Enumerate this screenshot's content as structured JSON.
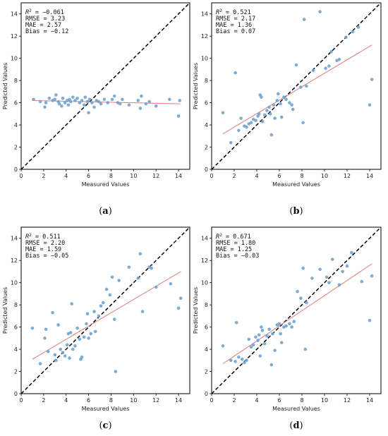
{
  "chart_data": [
    {
      "type": "scatter",
      "panel": "a",
      "caption_open": "(",
      "caption_letter": "a",
      "caption_close": ")",
      "xlabel": "Measured Values",
      "ylabel": "Predicted Values",
      "xlim": [
        0,
        15
      ],
      "ylim": [
        0,
        15
      ],
      "xticks": [
        0,
        2,
        4,
        6,
        8,
        10,
        12,
        14
      ],
      "yticks": [
        0,
        2,
        4,
        6,
        8,
        10,
        12,
        14
      ],
      "grid": false,
      "stats": {
        "r2_label": "R",
        "r2_sup": "2",
        "r2_value": " = −0.061",
        "rmse": "RMSE = 3.23",
        "mae": "MAE = 2.57",
        "bias": "Bias = −0.12"
      },
      "point_color": "#6fa3cf",
      "fit_color": "#e07b7b",
      "fit_line": [
        [
          1,
          6.2
        ],
        [
          14.2,
          5.9
        ]
      ],
      "identity_line": [
        [
          0,
          0
        ],
        [
          15,
          15
        ]
      ],
      "points": [
        [
          1.1,
          6.3
        ],
        [
          1.7,
          6.1
        ],
        [
          2.1,
          5.6
        ],
        [
          2.2,
          6.0
        ],
        [
          2.5,
          6.4
        ],
        [
          2.8,
          6.2
        ],
        [
          3.0,
          6.3
        ],
        [
          3.1,
          6.7
        ],
        [
          3.3,
          6.1
        ],
        [
          3.4,
          5.9
        ],
        [
          3.6,
          5.7
        ],
        [
          3.7,
          6.4
        ],
        [
          3.9,
          6.0
        ],
        [
          4.1,
          6.2
        ],
        [
          4.2,
          5.8
        ],
        [
          4.3,
          6.3
        ],
        [
          4.4,
          6.1
        ],
        [
          4.6,
          6.5
        ],
        [
          4.8,
          6.2
        ],
        [
          5.0,
          6.4
        ],
        [
          5.2,
          6.0
        ],
        [
          5.4,
          6.2
        ],
        [
          5.6,
          5.8
        ],
        [
          5.7,
          6.5
        ],
        [
          5.9,
          6.1
        ],
        [
          6.0,
          5.1
        ],
        [
          6.1,
          6.3
        ],
        [
          6.3,
          6.0
        ],
        [
          6.5,
          5.6
        ],
        [
          6.7,
          6.2
        ],
        [
          6.9,
          6.1
        ],
        [
          7.1,
          5.9
        ],
        [
          7.4,
          6.3
        ],
        [
          7.7,
          6.0
        ],
        [
          8.1,
          6.3
        ],
        [
          8.3,
          6.6
        ],
        [
          8.6,
          6.0
        ],
        [
          8.8,
          5.9
        ],
        [
          9.0,
          6.3
        ],
        [
          9.6,
          5.8
        ],
        [
          10.4,
          6.2
        ],
        [
          10.6,
          5.5
        ],
        [
          10.7,
          6.6
        ],
        [
          11.1,
          5.9
        ],
        [
          11.4,
          6.1
        ],
        [
          12.0,
          5.7
        ],
        [
          13.2,
          6.3
        ],
        [
          14.0,
          4.8
        ],
        [
          14.1,
          6.2
        ]
      ]
    },
    {
      "type": "scatter",
      "panel": "b",
      "caption_open": "(",
      "caption_letter": "b",
      "caption_close": ")",
      "xlabel": "Measured Values",
      "ylabel": "Predicted Values",
      "xlim": [
        0,
        15
      ],
      "ylim": [
        0,
        15
      ],
      "xticks": [
        0,
        2,
        4,
        6,
        8,
        10,
        12,
        14
      ],
      "yticks": [
        0,
        2,
        4,
        6,
        8,
        10,
        12,
        14
      ],
      "grid": false,
      "stats": {
        "r2_label": "R",
        "r2_sup": "2",
        "r2_value": " = 0.521",
        "rmse": "RMSE = 2.17",
        "mae": "MAE = 1.36",
        "bias": "Bias = 0.07"
      },
      "point_color": "#6fa3cf",
      "fit_color": "#e07b7b",
      "fit_line": [
        [
          1,
          3.2
        ],
        [
          14.2,
          11.2
        ]
      ],
      "identity_line": [
        [
          0,
          0
        ],
        [
          15,
          15
        ]
      ],
      "points": [
        [
          1.0,
          5.1
        ],
        [
          1.7,
          2.4
        ],
        [
          2.1,
          8.7
        ],
        [
          2.4,
          3.5
        ],
        [
          2.6,
          4.6
        ],
        [
          2.9,
          3.9
        ],
        [
          3.1,
          3.8
        ],
        [
          3.3,
          4.1
        ],
        [
          3.5,
          4.2
        ],
        [
          3.7,
          4.5
        ],
        [
          3.9,
          4.4
        ],
        [
          4.1,
          4.8
        ],
        [
          4.2,
          5.0
        ],
        [
          4.3,
          6.7
        ],
        [
          4.4,
          6.5
        ],
        [
          4.5,
          4.3
        ],
        [
          4.7,
          4.9
        ],
        [
          4.9,
          5.3
        ],
        [
          5.1,
          5.6
        ],
        [
          5.2,
          5.0
        ],
        [
          5.3,
          3.1
        ],
        [
          5.5,
          5.8
        ],
        [
          5.6,
          4.6
        ],
        [
          5.8,
          6.2
        ],
        [
          5.9,
          6.8
        ],
        [
          6.1,
          5.9
        ],
        [
          6.2,
          4.7
        ],
        [
          6.4,
          6.5
        ],
        [
          6.6,
          6.3
        ],
        [
          6.9,
          6.0
        ],
        [
          7.1,
          5.8
        ],
        [
          7.2,
          5.4
        ],
        [
          7.5,
          9.4
        ],
        [
          7.9,
          7.4
        ],
        [
          8.1,
          4.2
        ],
        [
          8.2,
          13.5
        ],
        [
          8.4,
          7.5
        ],
        [
          9.0,
          8.9
        ],
        [
          9.6,
          14.2
        ],
        [
          10.1,
          9.1
        ],
        [
          10.4,
          9.3
        ],
        [
          10.6,
          10.6
        ],
        [
          11.1,
          9.8
        ],
        [
          11.3,
          9.9
        ],
        [
          11.9,
          11.9
        ],
        [
          12.5,
          12.4
        ],
        [
          13.0,
          12.8
        ],
        [
          14.0,
          5.8
        ],
        [
          14.2,
          8.1
        ]
      ]
    },
    {
      "type": "scatter",
      "panel": "c",
      "caption_open": "(",
      "caption_letter": "c",
      "caption_close": ")",
      "xlabel": "Measured Values",
      "ylabel": "Predicted Values",
      "xlim": [
        0,
        15
      ],
      "ylim": [
        0,
        15
      ],
      "xticks": [
        0,
        2,
        4,
        6,
        8,
        10,
        12,
        14
      ],
      "yticks": [
        0,
        2,
        4,
        6,
        8,
        10,
        12,
        14
      ],
      "grid": false,
      "stats": {
        "r2_label": "R",
        "r2_sup": "2",
        "r2_value": " = 0.511",
        "rmse": "RMSE = 2.20",
        "mae": "MAE = 1.59",
        "bias": "Bias = −0.05"
      },
      "point_color": "#6fa3cf",
      "fit_color": "#e07b7b",
      "fit_line": [
        [
          1,
          3.1
        ],
        [
          14.2,
          11.0
        ]
      ],
      "identity_line": [
        [
          0,
          0
        ],
        [
          15,
          15
        ]
      ],
      "points": [
        [
          1.0,
          5.9
        ],
        [
          1.7,
          2.7
        ],
        [
          2.1,
          5.0
        ],
        [
          2.2,
          5.8
        ],
        [
          2.4,
          3.8
        ],
        [
          2.8,
          7.3
        ],
        [
          3.0,
          3.5
        ],
        [
          3.1,
          3.0
        ],
        [
          3.3,
          6.2
        ],
        [
          3.5,
          4.0
        ],
        [
          3.7,
          3.7
        ],
        [
          3.9,
          3.4
        ],
        [
          4.1,
          4.4
        ],
        [
          4.2,
          5.4
        ],
        [
          4.3,
          3.2
        ],
        [
          4.4,
          5.5
        ],
        [
          4.5,
          8.1
        ],
        [
          4.6,
          4.0
        ],
        [
          4.8,
          4.3
        ],
        [
          5.0,
          5.9
        ],
        [
          5.2,
          4.9
        ],
        [
          5.3,
          3.1
        ],
        [
          5.4,
          3.3
        ],
        [
          5.6,
          5.1
        ],
        [
          5.8,
          6.3
        ],
        [
          5.9,
          7.2
        ],
        [
          6.0,
          5.0
        ],
        [
          6.2,
          5.4
        ],
        [
          6.5,
          7.4
        ],
        [
          6.6,
          5.6
        ],
        [
          6.9,
          7.0
        ],
        [
          7.1,
          7.9
        ],
        [
          7.3,
          8.2
        ],
        [
          7.6,
          9.4
        ],
        [
          7.9,
          8.9
        ],
        [
          8.1,
          10.5
        ],
        [
          8.3,
          6.7
        ],
        [
          8.4,
          2.0
        ],
        [
          8.7,
          10.2
        ],
        [
          9.6,
          11.4
        ],
        [
          10.4,
          10.4
        ],
        [
          10.6,
          12.6
        ],
        [
          10.8,
          7.4
        ],
        [
          11.4,
          11.4
        ],
        [
          11.6,
          11.3
        ],
        [
          12.0,
          9.6
        ],
        [
          13.3,
          9.9
        ],
        [
          14.0,
          7.7
        ],
        [
          14.2,
          8.6
        ]
      ]
    },
    {
      "type": "scatter",
      "panel": "d",
      "caption_open": "(",
      "caption_letter": "d",
      "caption_close": ")",
      "xlabel": "Measured Values",
      "ylabel": "Predicted Values",
      "xlim": [
        0,
        15
      ],
      "ylim": [
        0,
        15
      ],
      "xticks": [
        0,
        2,
        4,
        6,
        8,
        10,
        12,
        14
      ],
      "yticks": [
        0,
        2,
        4,
        6,
        8,
        10,
        12,
        14
      ],
      "grid": false,
      "stats": {
        "r2_label": "R",
        "r2_sup": "2",
        "r2_value": " = 0.671",
        "rmse": "RMSE = 1.80",
        "mae": "MAE = 1.25",
        "bias": "Bias = −0.03"
      },
      "point_color": "#6fa3cf",
      "fit_color": "#e07b7b",
      "fit_line": [
        [
          1,
          2.7
        ],
        [
          14.2,
          11.7
        ]
      ],
      "identity_line": [
        [
          0,
          0
        ],
        [
          15,
          15
        ]
      ],
      "points": [
        [
          1.0,
          4.3
        ],
        [
          1.7,
          3.0
        ],
        [
          2.1,
          2.9
        ],
        [
          2.2,
          6.4
        ],
        [
          2.4,
          3.3
        ],
        [
          2.7,
          3.1
        ],
        [
          2.9,
          2.8
        ],
        [
          3.1,
          3.0
        ],
        [
          3.3,
          4.9
        ],
        [
          3.5,
          4.2
        ],
        [
          3.7,
          4.4
        ],
        [
          3.9,
          5.1
        ],
        [
          4.1,
          4.8
        ],
        [
          4.2,
          5.3
        ],
        [
          4.3,
          3.4
        ],
        [
          4.4,
          6.0
        ],
        [
          4.5,
          5.7
        ],
        [
          4.7,
          4.5
        ],
        [
          4.9,
          5.2
        ],
        [
          5.1,
          5.8
        ],
        [
          5.3,
          2.6
        ],
        [
          5.4,
          5.4
        ],
        [
          5.6,
          3.9
        ],
        [
          5.8,
          6.2
        ],
        [
          6.0,
          6.3
        ],
        [
          6.1,
          5.4
        ],
        [
          6.2,
          4.6
        ],
        [
          6.4,
          6.0
        ],
        [
          6.6,
          6.1
        ],
        [
          6.9,
          6.3
        ],
        [
          7.1,
          6.0
        ],
        [
          7.3,
          6.5
        ],
        [
          7.6,
          9.2
        ],
        [
          7.9,
          8.6
        ],
        [
          8.1,
          11.3
        ],
        [
          8.3,
          4.0
        ],
        [
          8.4,
          8.2
        ],
        [
          8.9,
          10.4
        ],
        [
          9.6,
          11.2
        ],
        [
          10.2,
          10.5
        ],
        [
          10.4,
          10.0
        ],
        [
          10.7,
          12.1
        ],
        [
          11.3,
          9.8
        ],
        [
          11.6,
          11.0
        ],
        [
          12.0,
          11.5
        ],
        [
          12.4,
          12.7
        ],
        [
          13.3,
          10.1
        ],
        [
          14.0,
          6.6
        ],
        [
          14.2,
          10.6
        ]
      ]
    }
  ]
}
